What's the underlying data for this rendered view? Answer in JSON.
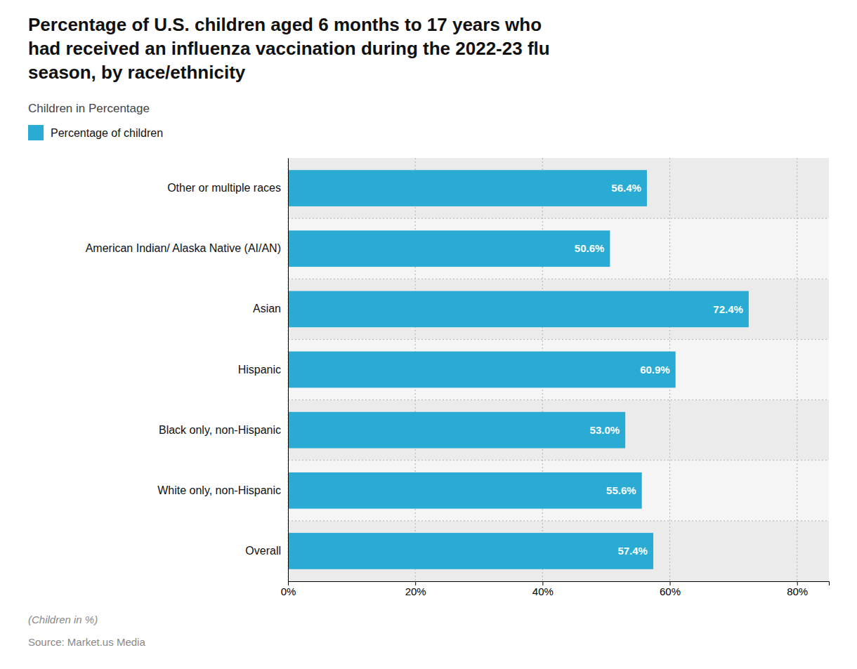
{
  "chart_data": {
    "type": "bar",
    "orientation": "horizontal",
    "title": "Percentage of U.S. children aged 6 months to 17 years who\nhad received an influenza vaccination during the 2022-23 flu\nseason, by race/ethnicity",
    "subtitle": "Children in Percentage",
    "categories": [
      "Overall",
      "White only, non-Hispanic",
      "Black only, non-Hispanic",
      "Hispanic",
      "Asian",
      "American Indian/ Alaska Native (AI/AN)",
      "Other or multiple races"
    ],
    "series": [
      {
        "name": "Percentage of children",
        "color": "#29ABD4",
        "values": [
          57.4,
          55.6,
          53.0,
          60.9,
          72.4,
          50.6,
          56.4
        ],
        "value_labels": [
          "57.4%",
          "55.6%",
          "53.0%",
          "60.9%",
          "72.4%",
          "50.6%",
          "56.4%"
        ]
      }
    ],
    "xlim": [
      0,
      85
    ],
    "xticks": [
      {
        "value": 0,
        "label": "0%"
      },
      {
        "value": 20,
        "label": "20%"
      },
      {
        "value": 40,
        "label": "40%"
      },
      {
        "value": 60,
        "label": "60%"
      },
      {
        "value": 80,
        "label": "80%"
      }
    ],
    "grid": true,
    "data_labels": true,
    "legend": "top-left",
    "annotations": [
      "(Children in %)",
      "Source: Market.us Media"
    ]
  }
}
